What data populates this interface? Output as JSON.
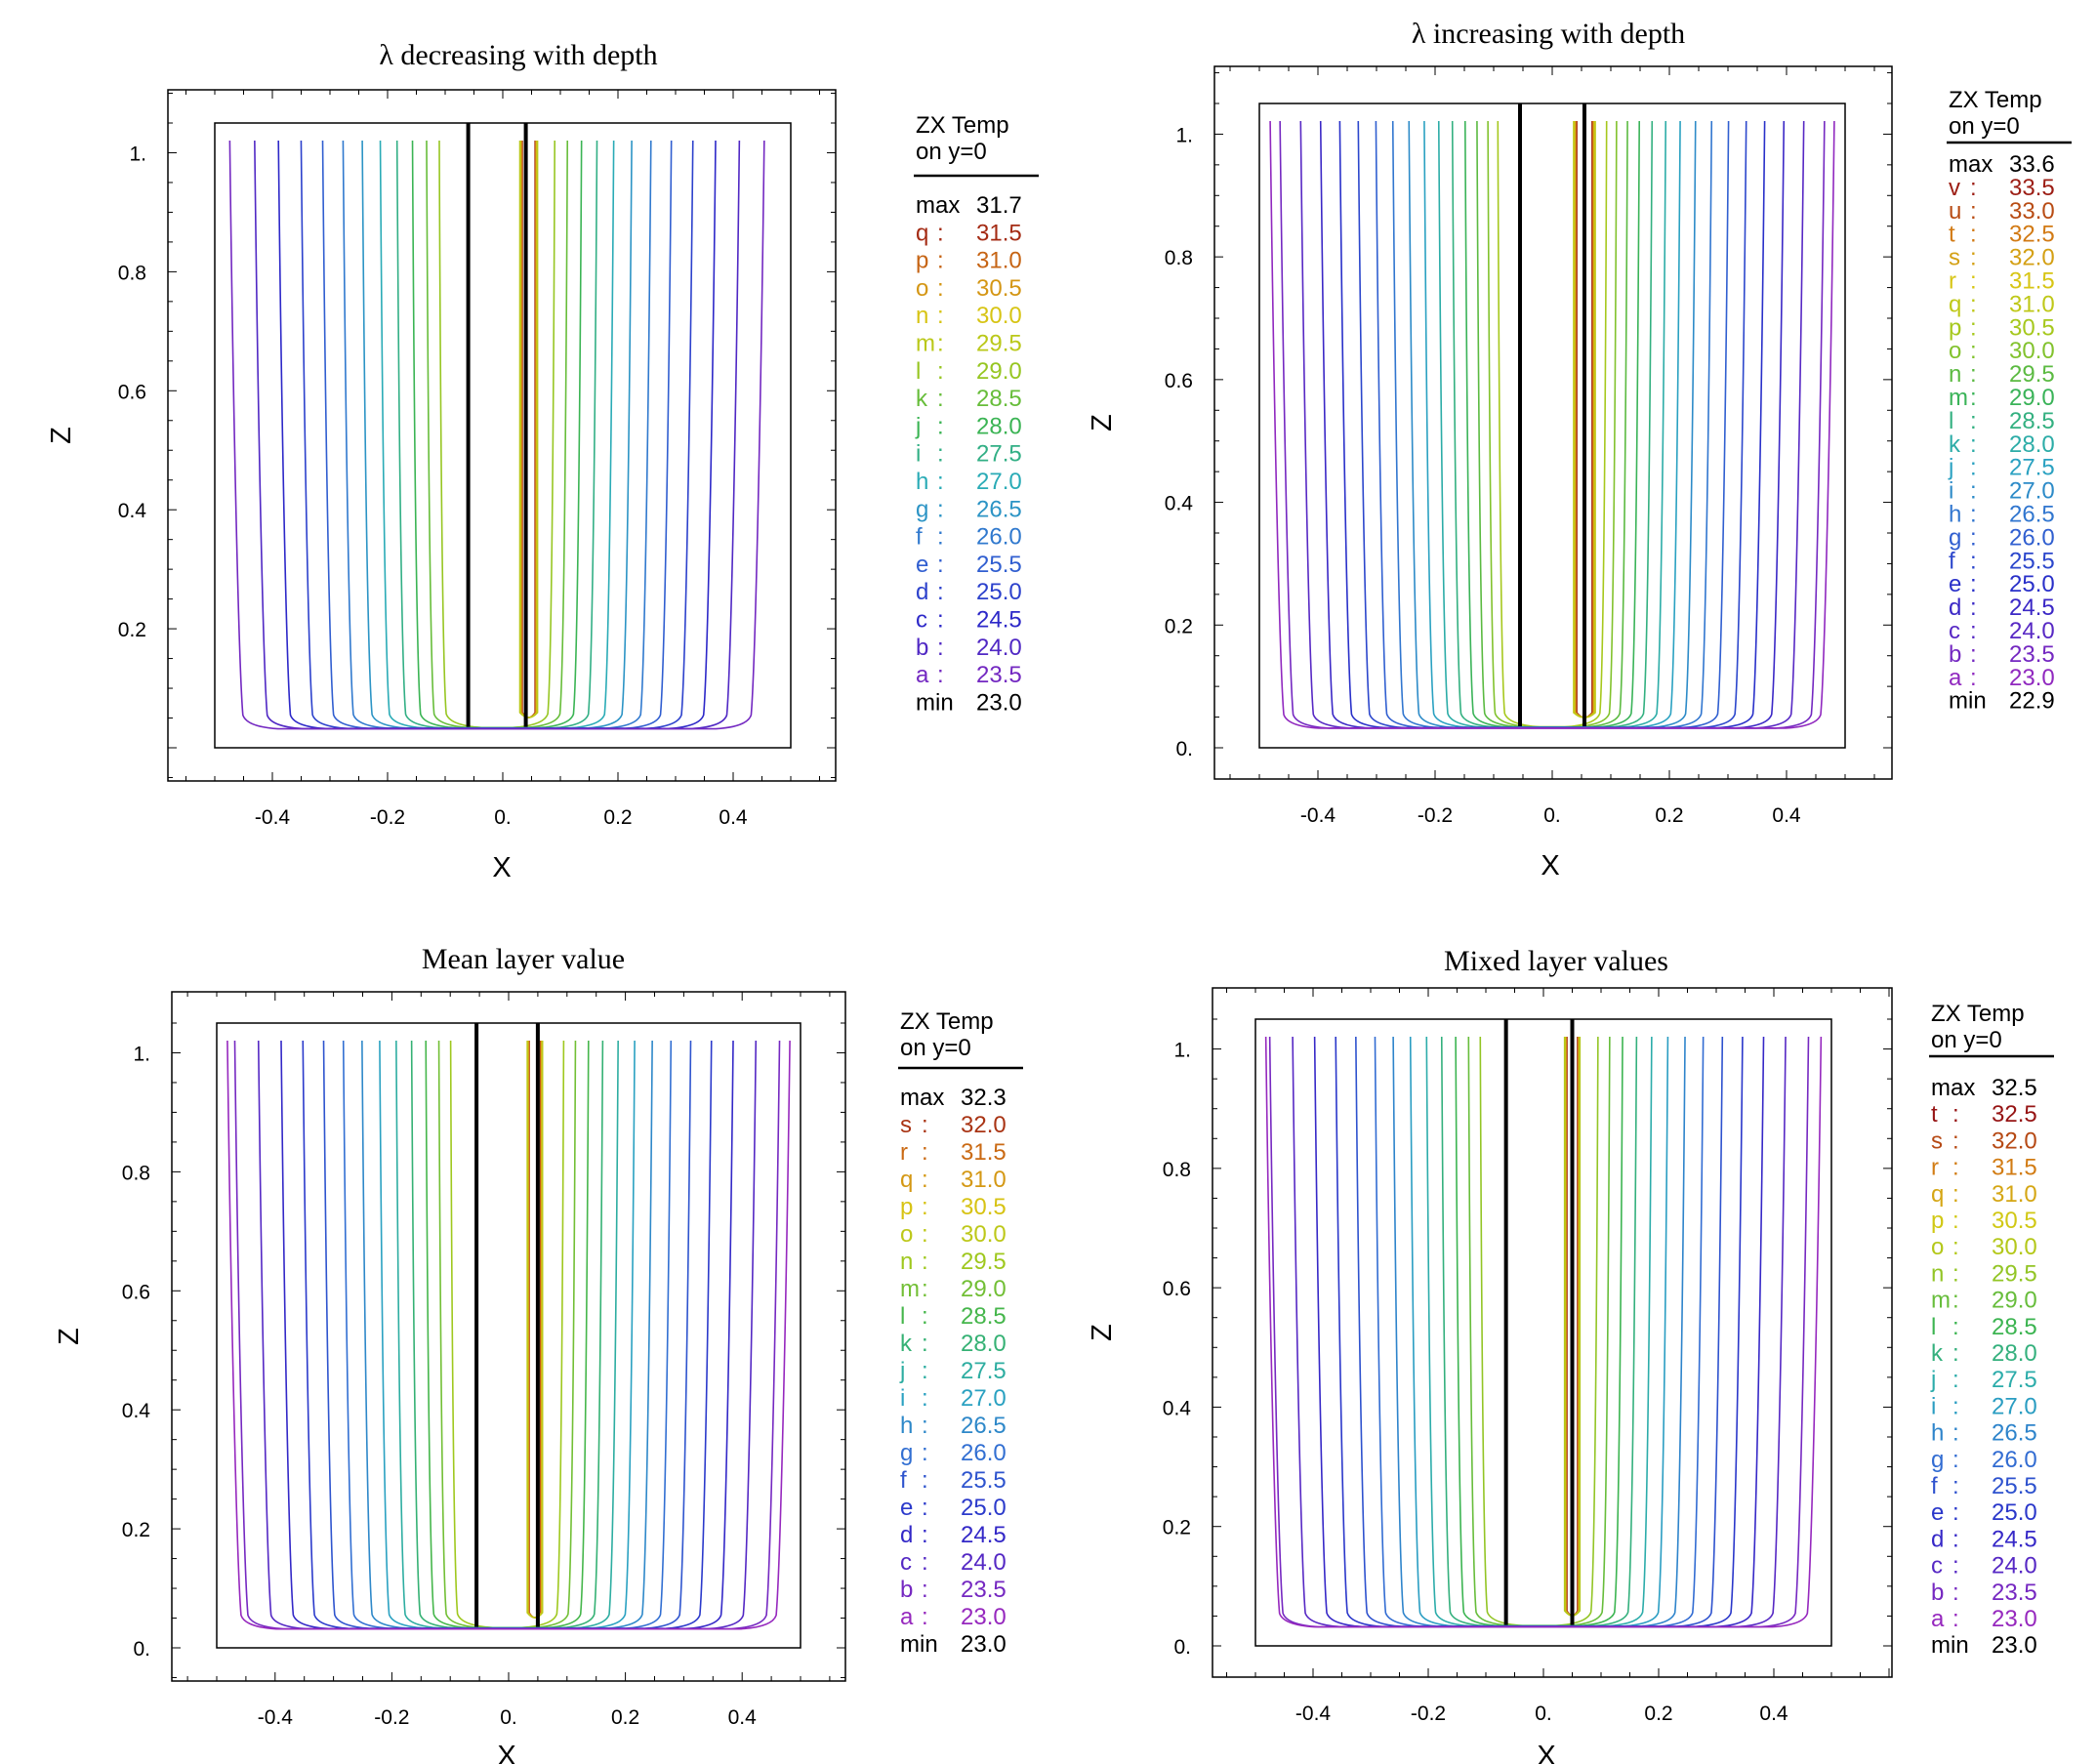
{
  "chart_data": [
    {
      "type": "contour",
      "title": "λ decreasing with depth",
      "xlabel": "X",
      "ylabel": "Z",
      "xlim": [
        -0.5,
        0.5
      ],
      "ylim": [
        0.0,
        1.05
      ],
      "x_ticks": [
        "-0.4",
        "-0.2",
        "0.",
        "0.2",
        "0.4"
      ],
      "y_ticks": [
        "0.2",
        "0.4",
        "0.6",
        "0.8",
        "1."
      ],
      "legend": {
        "title_lines": [
          "ZX Temp",
          "on y=0"
        ],
        "max": "31.7",
        "min": "23.0",
        "levels": [
          {
            "key": "q",
            "value": "31.5"
          },
          {
            "key": "p",
            "value": "31.0"
          },
          {
            "key": "o",
            "value": "30.5"
          },
          {
            "key": "n",
            "value": "30.0"
          },
          {
            "key": "m",
            "value": "29.5"
          },
          {
            "key": "l",
            "value": "29.0"
          },
          {
            "key": "k",
            "value": "28.5"
          },
          {
            "key": "j",
            "value": "28.0"
          },
          {
            "key": "i",
            "value": "27.5"
          },
          {
            "key": "h",
            "value": "27.0"
          },
          {
            "key": "g",
            "value": "26.5"
          },
          {
            "key": "f",
            "value": "26.0"
          },
          {
            "key": "e",
            "value": "25.5"
          },
          {
            "key": "d",
            "value": "25.0"
          },
          {
            "key": "c",
            "value": "24.5"
          },
          {
            "key": "b",
            "value": "24.0"
          },
          {
            "key": "a",
            "value": "23.5"
          }
        ]
      }
    },
    {
      "type": "contour",
      "title": "λ increasing with depth",
      "xlabel": "X",
      "ylabel": "Z",
      "xlim": [
        -0.5,
        0.5
      ],
      "ylim": [
        0.0,
        1.05
      ],
      "x_ticks": [
        "-0.4",
        "-0.2",
        "0.",
        "0.2",
        "0.4"
      ],
      "y_ticks": [
        "0.",
        "0.2",
        "0.4",
        "0.6",
        "0.8",
        "1."
      ],
      "legend": {
        "title_lines": [
          "ZX Temp",
          "on y=0"
        ],
        "max": "33.6",
        "min": "22.9",
        "levels": [
          {
            "key": "v",
            "value": "33.5"
          },
          {
            "key": "u",
            "value": "33.0"
          },
          {
            "key": "t",
            "value": "32.5"
          },
          {
            "key": "s",
            "value": "32.0"
          },
          {
            "key": "r",
            "value": "31.5"
          },
          {
            "key": "q",
            "value": "31.0"
          },
          {
            "key": "p",
            "value": "30.5"
          },
          {
            "key": "o",
            "value": "30.0"
          },
          {
            "key": "n",
            "value": "29.5"
          },
          {
            "key": "m",
            "value": "29.0"
          },
          {
            "key": "l",
            "value": "28.5"
          },
          {
            "key": "k",
            "value": "28.0"
          },
          {
            "key": "j",
            "value": "27.5"
          },
          {
            "key": "i",
            "value": "27.0"
          },
          {
            "key": "h",
            "value": "26.5"
          },
          {
            "key": "g",
            "value": "26.0"
          },
          {
            "key": "f",
            "value": "25.5"
          },
          {
            "key": "e",
            "value": "25.0"
          },
          {
            "key": "d",
            "value": "24.5"
          },
          {
            "key": "c",
            "value": "24.0"
          },
          {
            "key": "b",
            "value": "23.5"
          },
          {
            "key": "a",
            "value": "23.0"
          }
        ]
      }
    },
    {
      "type": "contour",
      "title": "Mean layer value",
      "xlabel": "X",
      "ylabel": "Z",
      "xlim": [
        -0.5,
        0.5
      ],
      "ylim": [
        0.0,
        1.05
      ],
      "x_ticks": [
        "-0.4",
        "-0.2",
        "0.",
        "0.2",
        "0.4"
      ],
      "y_ticks": [
        "0.",
        "0.2",
        "0.4",
        "0.6",
        "0.8",
        "1."
      ],
      "legend": {
        "title_lines": [
          "ZX Temp",
          "on y=0"
        ],
        "max": "32.3",
        "min": "23.0",
        "levels": [
          {
            "key": "s",
            "value": "32.0"
          },
          {
            "key": "r",
            "value": "31.5"
          },
          {
            "key": "q",
            "value": "31.0"
          },
          {
            "key": "p",
            "value": "30.5"
          },
          {
            "key": "o",
            "value": "30.0"
          },
          {
            "key": "n",
            "value": "29.5"
          },
          {
            "key": "m",
            "value": "29.0"
          },
          {
            "key": "l",
            "value": "28.5"
          },
          {
            "key": "k",
            "value": "28.0"
          },
          {
            "key": "j",
            "value": "27.5"
          },
          {
            "key": "i",
            "value": "27.0"
          },
          {
            "key": "h",
            "value": "26.5"
          },
          {
            "key": "g",
            "value": "26.0"
          },
          {
            "key": "f",
            "value": "25.5"
          },
          {
            "key": "e",
            "value": "25.0"
          },
          {
            "key": "d",
            "value": "24.5"
          },
          {
            "key": "c",
            "value": "24.0"
          },
          {
            "key": "b",
            "value": "23.5"
          },
          {
            "key": "a",
            "value": "23.0"
          }
        ]
      }
    },
    {
      "type": "contour",
      "title": "Mixed layer values",
      "xlabel": "X",
      "ylabel": "Z",
      "xlim": [
        -0.5,
        0.5
      ],
      "ylim": [
        0.0,
        1.05
      ],
      "x_ticks": [
        "-0.4",
        "-0.2",
        "0.",
        "0.2",
        "0.4"
      ],
      "y_ticks": [
        "0.",
        "0.2",
        "0.4",
        "0.6",
        "0.8",
        "1."
      ],
      "legend": {
        "title_lines": [
          "ZX Temp",
          "on y=0"
        ],
        "max": "32.5",
        "min": "23.0",
        "levels": [
          {
            "key": "t",
            "value": "32.5"
          },
          {
            "key": "s",
            "value": "32.0"
          },
          {
            "key": "r",
            "value": "31.5"
          },
          {
            "key": "q",
            "value": "31.0"
          },
          {
            "key": "p",
            "value": "30.5"
          },
          {
            "key": "o",
            "value": "30.0"
          },
          {
            "key": "n",
            "value": "29.5"
          },
          {
            "key": "m",
            "value": "29.0"
          },
          {
            "key": "l",
            "value": "28.5"
          },
          {
            "key": "k",
            "value": "28.0"
          },
          {
            "key": "j",
            "value": "27.5"
          },
          {
            "key": "i",
            "value": "27.0"
          },
          {
            "key": "h",
            "value": "26.5"
          },
          {
            "key": "g",
            "value": "26.0"
          },
          {
            "key": "f",
            "value": "25.5"
          },
          {
            "key": "e",
            "value": "25.0"
          },
          {
            "key": "d",
            "value": "24.5"
          },
          {
            "key": "c",
            "value": "24.0"
          },
          {
            "key": "b",
            "value": "23.5"
          },
          {
            "key": "a",
            "value": "23.0"
          }
        ]
      }
    }
  ]
}
